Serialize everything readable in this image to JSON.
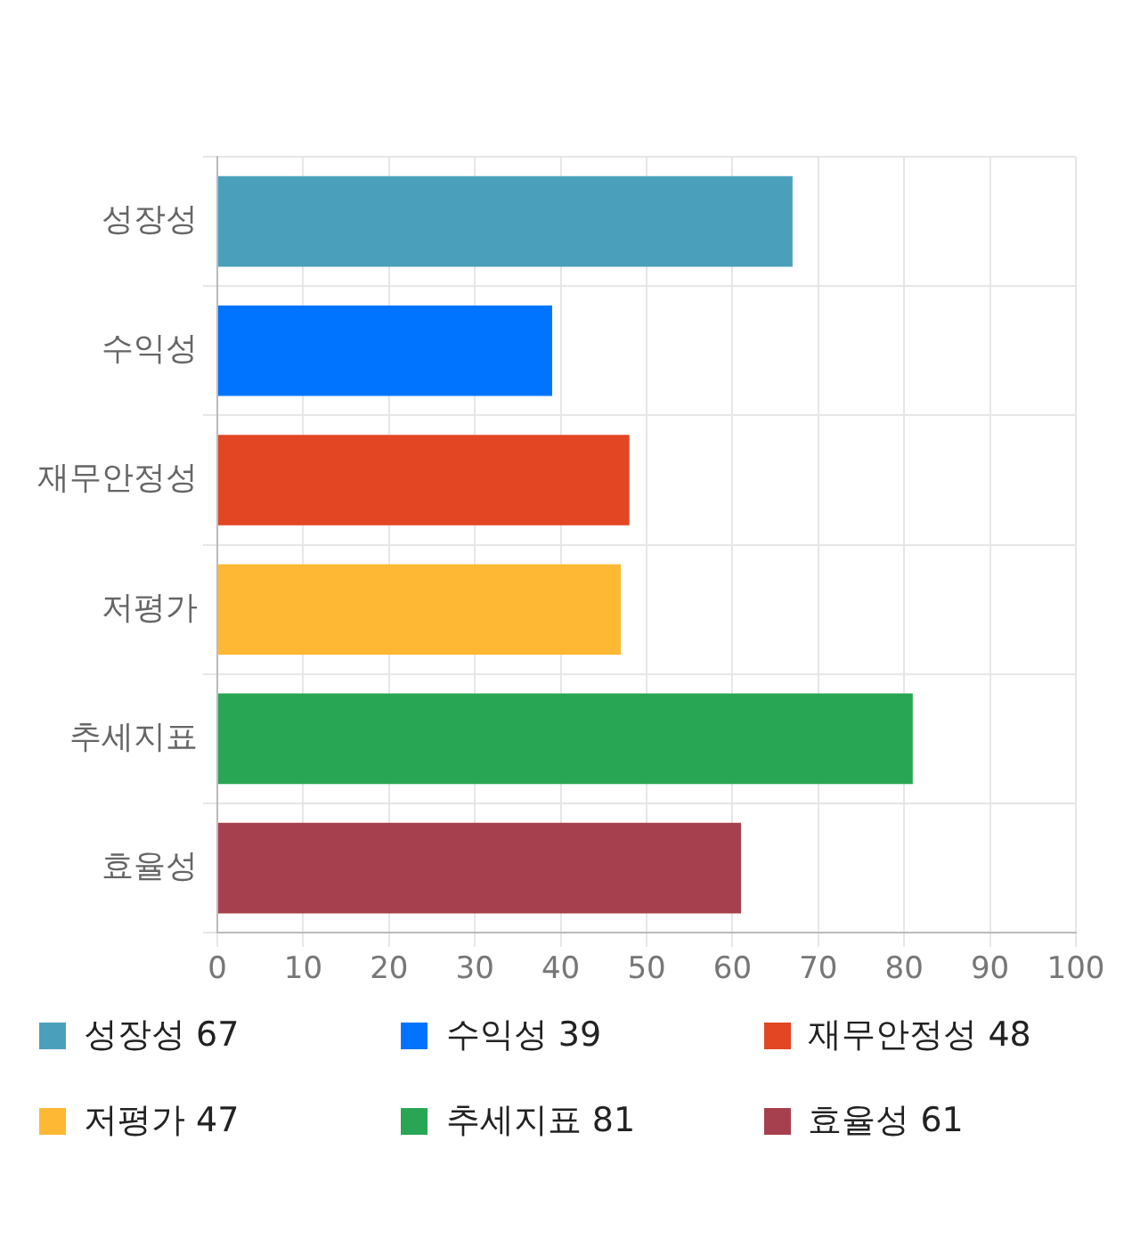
{
  "chart_data": {
    "type": "bar",
    "orientation": "horizontal",
    "categories": [
      "성장성",
      "수익성",
      "재무안정성",
      "저평가",
      "추세지표",
      "효율성"
    ],
    "values": [
      67,
      39,
      48,
      47,
      81,
      61
    ],
    "colors": [
      "#4aa0bb",
      "#0074ff",
      "#e24623",
      "#ffb833",
      "#29a654",
      "#a6404e"
    ],
    "xlim": [
      0,
      100
    ],
    "xticks": [
      0,
      10,
      20,
      30,
      40,
      50,
      60,
      70,
      80,
      90,
      100
    ],
    "annotations": [
      "성장성 67",
      "수익성 39",
      "재무안정성 48",
      "저평가 47",
      "추세지표 81",
      "효율성 61"
    ],
    "grid": true
  }
}
